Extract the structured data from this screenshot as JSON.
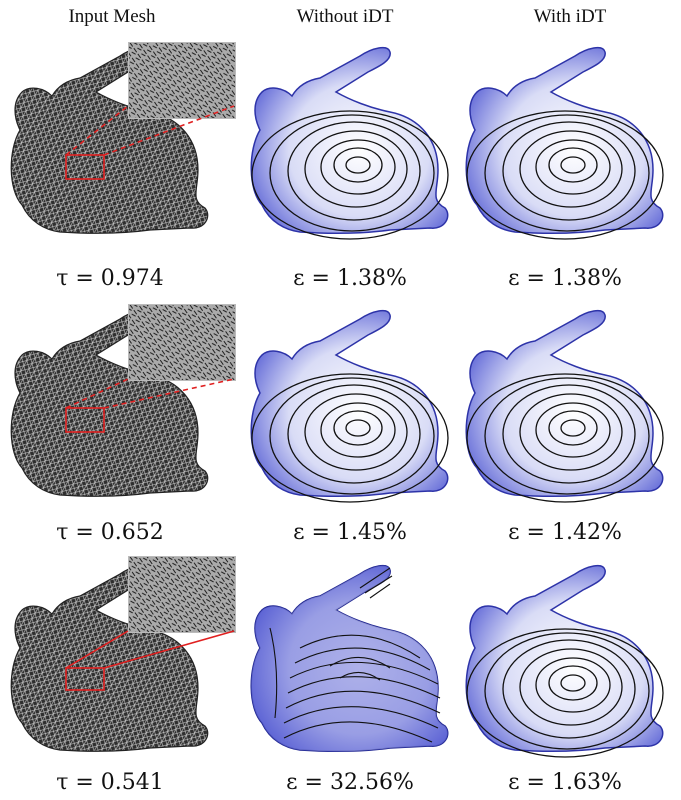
{
  "figure": {
    "columns": [
      {
        "header": "Input Mesh"
      },
      {
        "header": "Without iDT"
      },
      {
        "header": "With iDT"
      }
    ],
    "rows": [
      {
        "input_caption": "τ = 0.974",
        "without_caption": "ε = 1.38%",
        "with_caption": "ε = 1.38%"
      },
      {
        "input_caption": "τ = 0.652",
        "without_caption": "ε = 1.45%",
        "with_caption": "ε = 1.42%"
      },
      {
        "input_caption": "τ = 0.541",
        "without_caption": "ε = 32.56%",
        "with_caption": "ε = 1.63%"
      }
    ]
  },
  "colors": {
    "mesh_fill": "#3a3a3a",
    "mesh_lines": "#d8d8d8",
    "shaded_blue": "#5b62d6",
    "shaded_light": "#eef0fb",
    "contour": "#111111",
    "callout_red": "#e02020",
    "inset_bg": "#a9a9a9"
  },
  "icons": {
    "input_panel": "wireframe-bunny-icon",
    "output_panel": "shaded-bunny-icon",
    "zoom_inset": "mesh-zoom-icon"
  }
}
